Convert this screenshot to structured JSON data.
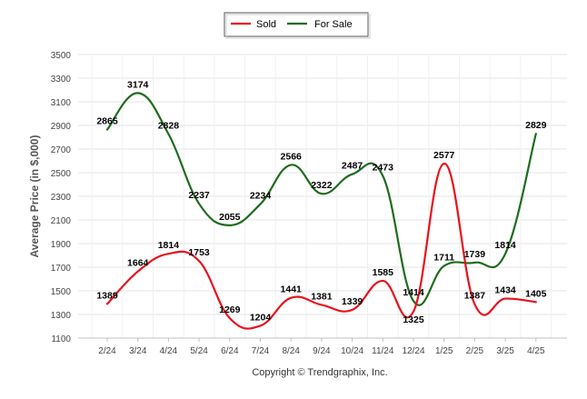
{
  "chart_data": {
    "type": "line",
    "categories": [
      "2/24",
      "3/24",
      "4/24",
      "5/24",
      "6/24",
      "7/24",
      "8/24",
      "9/24",
      "10/24",
      "11/24",
      "12/24",
      "1/25",
      "2/25",
      "3/25",
      "4/25"
    ],
    "series": [
      {
        "name": "Sold",
        "color": "#e8111b",
        "values": [
          1389,
          1664,
          1814,
          1753,
          1269,
          1204,
          1441,
          1381,
          1339,
          1585,
          1325,
          2577,
          1387,
          1434,
          1405
        ]
      },
      {
        "name": "For Sale",
        "color": "#1e6b1e",
        "values": [
          2865,
          3174,
          2828,
          2237,
          2055,
          2234,
          2566,
          2322,
          2487,
          2473,
          1414,
          1711,
          1739,
          1814,
          2829
        ]
      }
    ],
    "ylabel": "Average Price (in $,000)",
    "xlabel": "",
    "ylim": [
      1100,
      3500
    ],
    "yticks": [
      1100,
      1300,
      1500,
      1700,
      1900,
      2100,
      2300,
      2500,
      2700,
      2900,
      3100,
      3300,
      3500
    ],
    "legend_position": "top-center",
    "grid": true,
    "footer": "Copyright © Trendgraphix, Inc."
  }
}
